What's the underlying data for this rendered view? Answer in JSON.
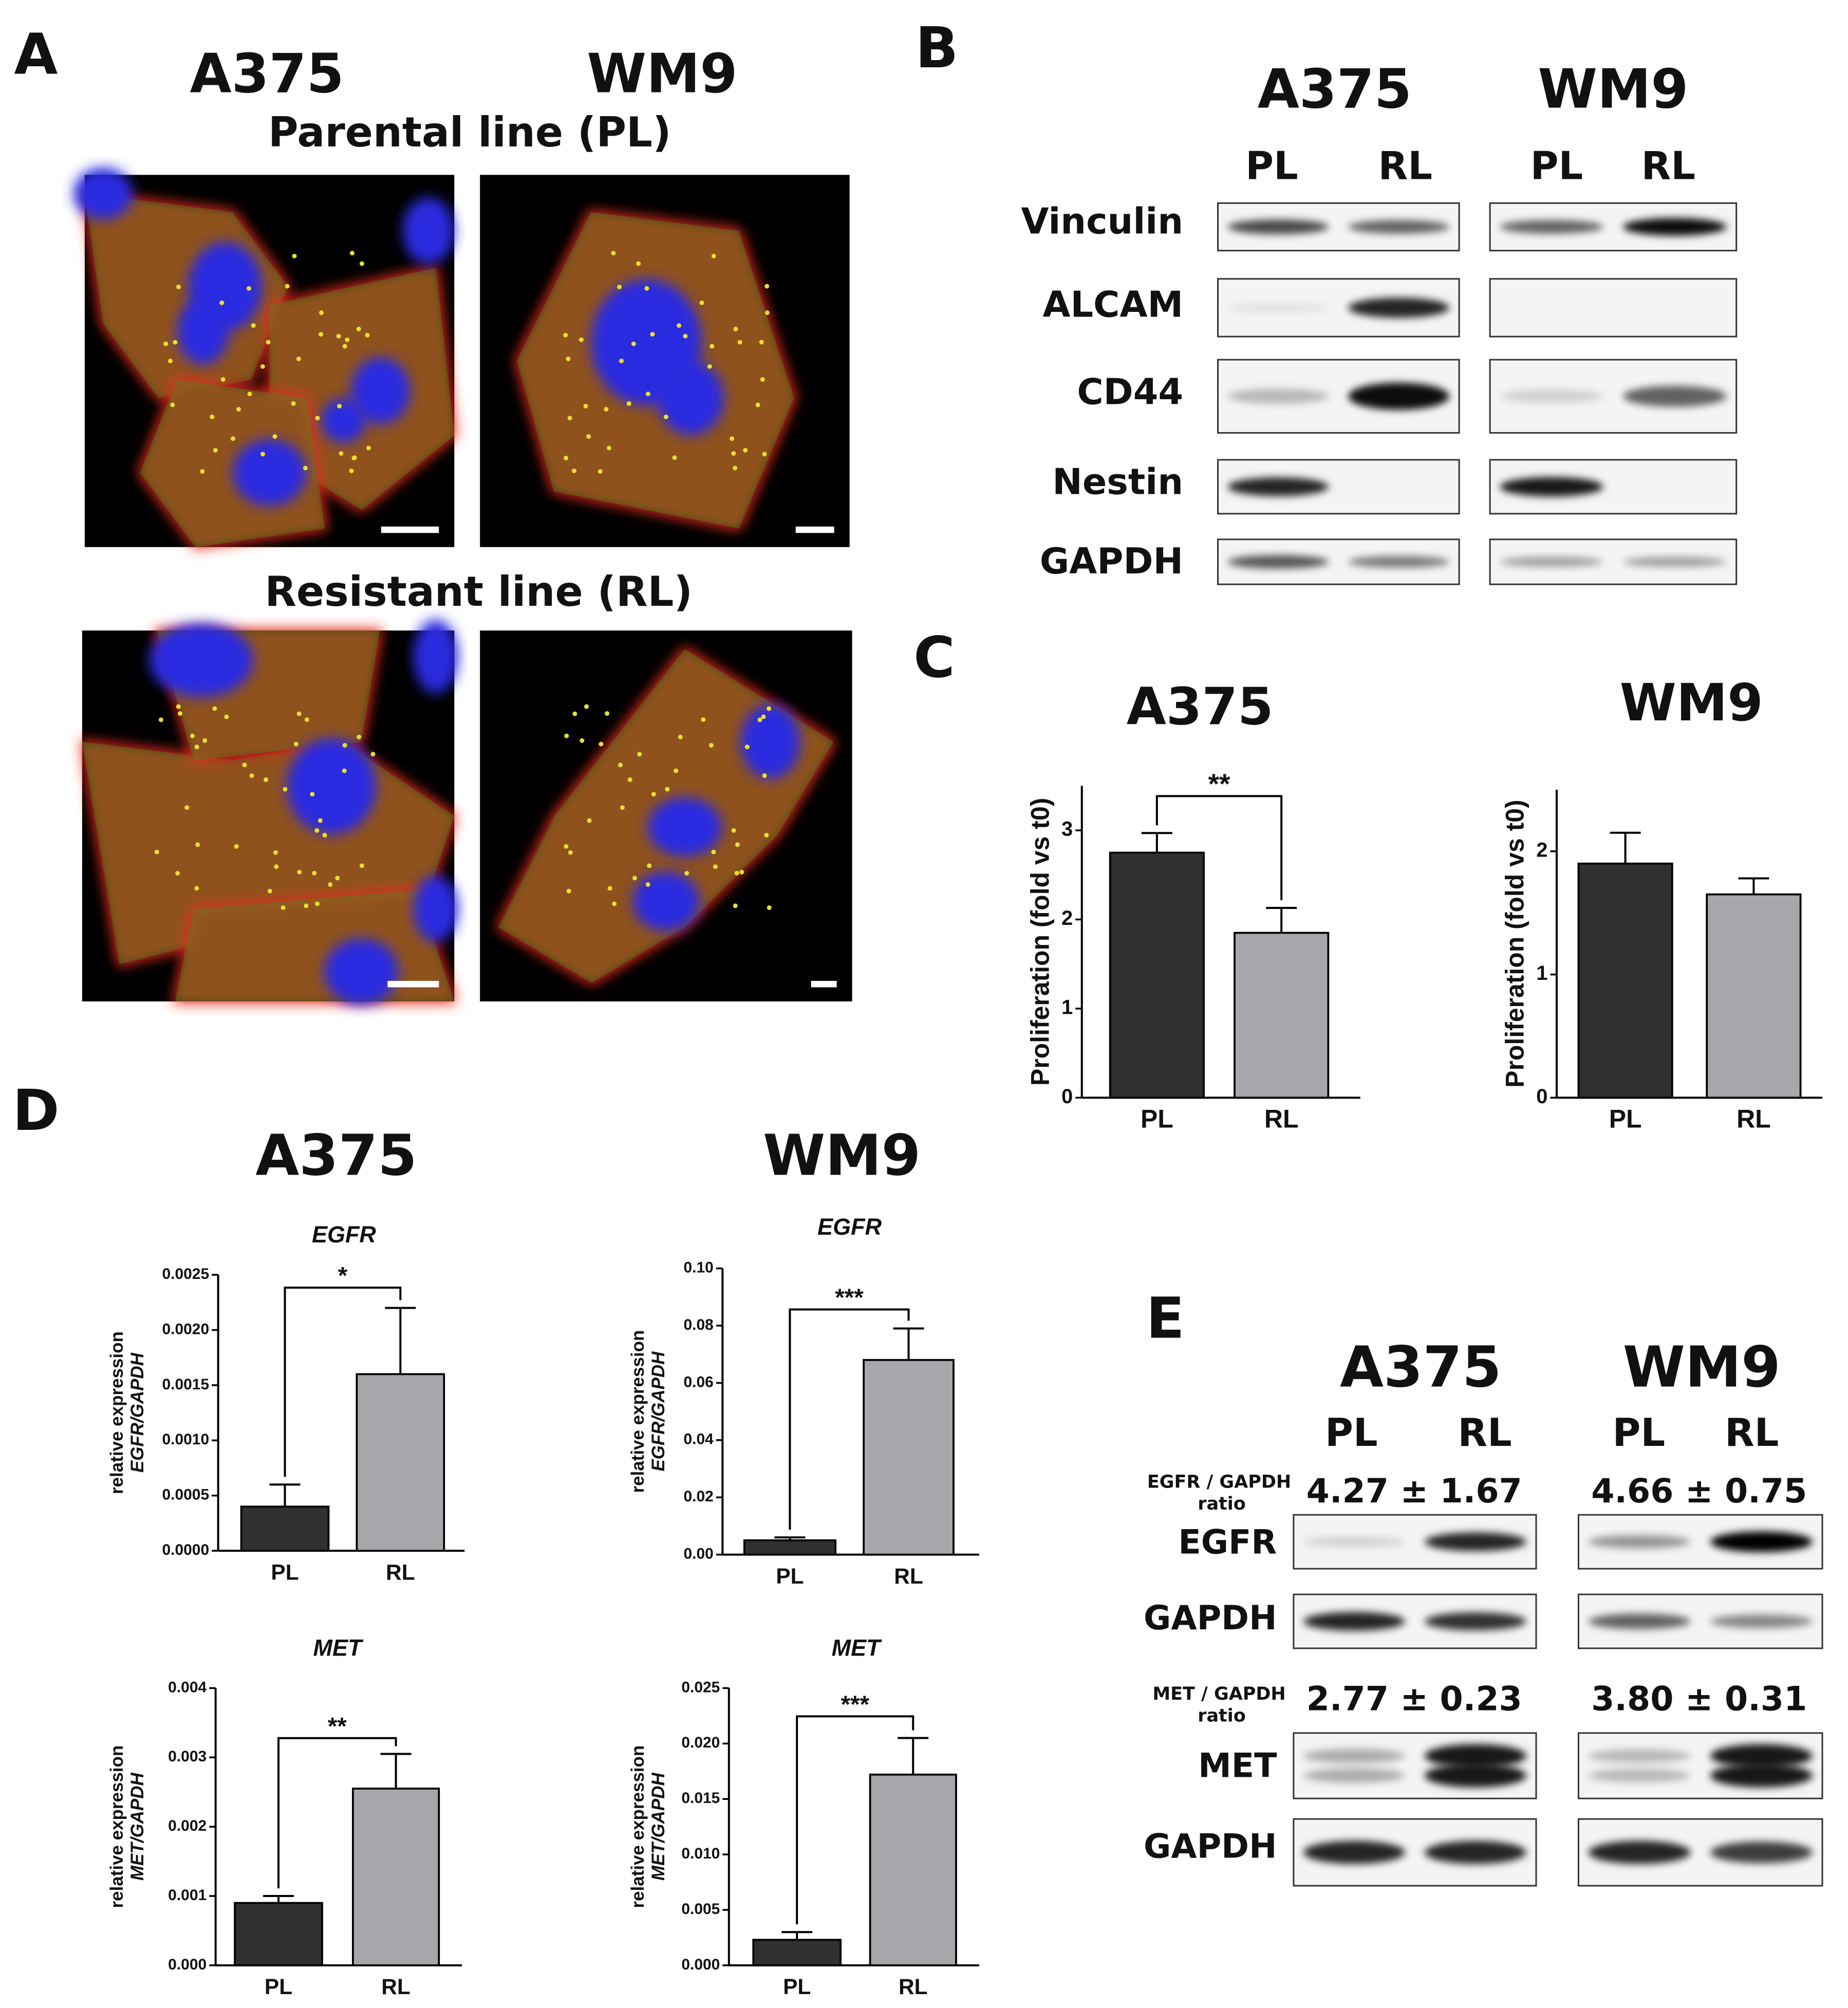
{
  "panel_labels": [
    "A",
    "B",
    "C",
    "D",
    "E"
  ],
  "panel_a": {
    "cell_lines": [
      "A375",
      "WM9"
    ],
    "rows": [
      "Parental line (PL)",
      "Resistant line (RL)"
    ]
  },
  "panel_b": {
    "cell_lines": [
      "A375",
      "WM9"
    ],
    "lanes": [
      "PL",
      "RL",
      "PL",
      "RL"
    ],
    "proteins": [
      "Vinculin",
      "ALCAM",
      "CD44",
      "Nestin",
      "GAPDH"
    ]
  },
  "panel_d": {
    "cell_lines": [
      "A375",
      "WM9"
    ]
  },
  "panel_e": {
    "cell_lines": [
      "A375",
      "WM9"
    ],
    "lanes": [
      "PL",
      "RL",
      "PL",
      "RL"
    ],
    "ratio_labels": [
      {
        "name": "EGFR / GAPDH",
        "unit": "ratio"
      },
      {
        "name": "MET / GAPDH",
        "unit": "ratio"
      }
    ],
    "ratios": [
      [
        "4.27 ± 1.67",
        "4.66 ± 0.75"
      ],
      [
        "2.77 ± 0.23",
        "3.80 ± 0.31"
      ]
    ],
    "proteins": [
      "EGFR",
      "GAPDH",
      "MET",
      "GAPDH"
    ]
  },
  "chart_data": [
    {
      "type": "bar",
      "title": "A375",
      "ylabel": [
        "Proliferation (fold vs t0)"
      ],
      "categories": [
        "PL",
        "RL"
      ],
      "values": [
        2.75,
        1.85
      ],
      "errors": [
        0.22,
        0.28
      ],
      "colors": [
        "#303030",
        "#a7a7ab"
      ],
      "ylim": [
        0,
        3.5
      ],
      "yticks": [
        0,
        1,
        2,
        3
      ],
      "significance": "**"
    },
    {
      "type": "bar",
      "title": "WM9",
      "ylabel": [
        "Proliferation (fold vs t0)"
      ],
      "categories": [
        "PL",
        "RL"
      ],
      "values": [
        1.9,
        1.65
      ],
      "errors": [
        0.25,
        0.13
      ],
      "colors": [
        "#303030",
        "#a7a7ab"
      ],
      "ylim": [
        0,
        2.5
      ],
      "yticks": [
        0,
        1,
        2
      ]
    },
    {
      "type": "bar",
      "title": "EGFR",
      "ylabel": [
        "relative expression",
        "EGFR/GAPDH"
      ],
      "categories": [
        "PL",
        "RL"
      ],
      "values": [
        0.0004,
        0.0016
      ],
      "errors": [
        0.0002,
        0.0006
      ],
      "colors": [
        "#303030",
        "#a7a7ab"
      ],
      "ylim": [
        0,
        0.0025
      ],
      "yticks": [
        {
          "value": 0,
          "label": "0.0000"
        },
        {
          "value": 0.0005,
          "label": "0.0005"
        },
        {
          "value": 0.001,
          "label": "0.0010"
        },
        {
          "value": 0.0015,
          "label": "0.0015"
        },
        {
          "value": 0.002,
          "label": "0.0020"
        },
        {
          "value": 0.0025,
          "label": "0.0025"
        }
      ],
      "significance": "*"
    },
    {
      "type": "bar",
      "title": "EGFR",
      "ylabel": [
        "relative expression",
        "EGFR/GAPDH"
      ],
      "categories": [
        "PL",
        "RL"
      ],
      "values": [
        0.005,
        0.068
      ],
      "errors": [
        0.001,
        0.011
      ],
      "colors": [
        "#303030",
        "#a7a7ab"
      ],
      "ylim": [
        0,
        0.1
      ],
      "yticks": [
        {
          "value": 0,
          "label": "0.00"
        },
        {
          "value": 0.02,
          "label": "0.02"
        },
        {
          "value": 0.04,
          "label": "0.04"
        },
        {
          "value": 0.06,
          "label": "0.06"
        },
        {
          "value": 0.08,
          "label": "0.08"
        },
        {
          "value": 0.1,
          "label": "0.10"
        }
      ],
      "significance": "***"
    },
    {
      "type": "bar",
      "title": "MET",
      "ylabel": [
        "relative expression",
        "MET/GAPDH"
      ],
      "categories": [
        "PL",
        "RL"
      ],
      "values": [
        0.0009,
        0.00255
      ],
      "errors": [
        0.0001,
        0.0005
      ],
      "colors": [
        "#303030",
        "#a7a7ab"
      ],
      "ylim": [
        0,
        0.004
      ],
      "yticks": [
        {
          "value": 0,
          "label": "0.000"
        },
        {
          "value": 0.001,
          "label": "0.001"
        },
        {
          "value": 0.002,
          "label": "0.002"
        },
        {
          "value": 0.003,
          "label": "0.003"
        },
        {
          "value": 0.004,
          "label": "0.004"
        }
      ],
      "significance": "**"
    },
    {
      "type": "bar",
      "title": "MET",
      "ylabel": [
        "relative expression",
        "MET/GAPDH"
      ],
      "categories": [
        "PL",
        "RL"
      ],
      "values": [
        0.0023,
        0.0172
      ],
      "errors": [
        0.0007,
        0.0033
      ],
      "colors": [
        "#303030",
        "#a7a7ab"
      ],
      "ylim": [
        0,
        0.025
      ],
      "yticks": [
        {
          "value": 0,
          "label": "0.000"
        },
        {
          "value": 0.005,
          "label": "0.005"
        },
        {
          "value": 0.01,
          "label": "0.010"
        },
        {
          "value": 0.015,
          "label": "0.015"
        },
        {
          "value": 0.02,
          "label": "0.020"
        },
        {
          "value": 0.025,
          "label": "0.025"
        }
      ],
      "significance": "***"
    }
  ]
}
